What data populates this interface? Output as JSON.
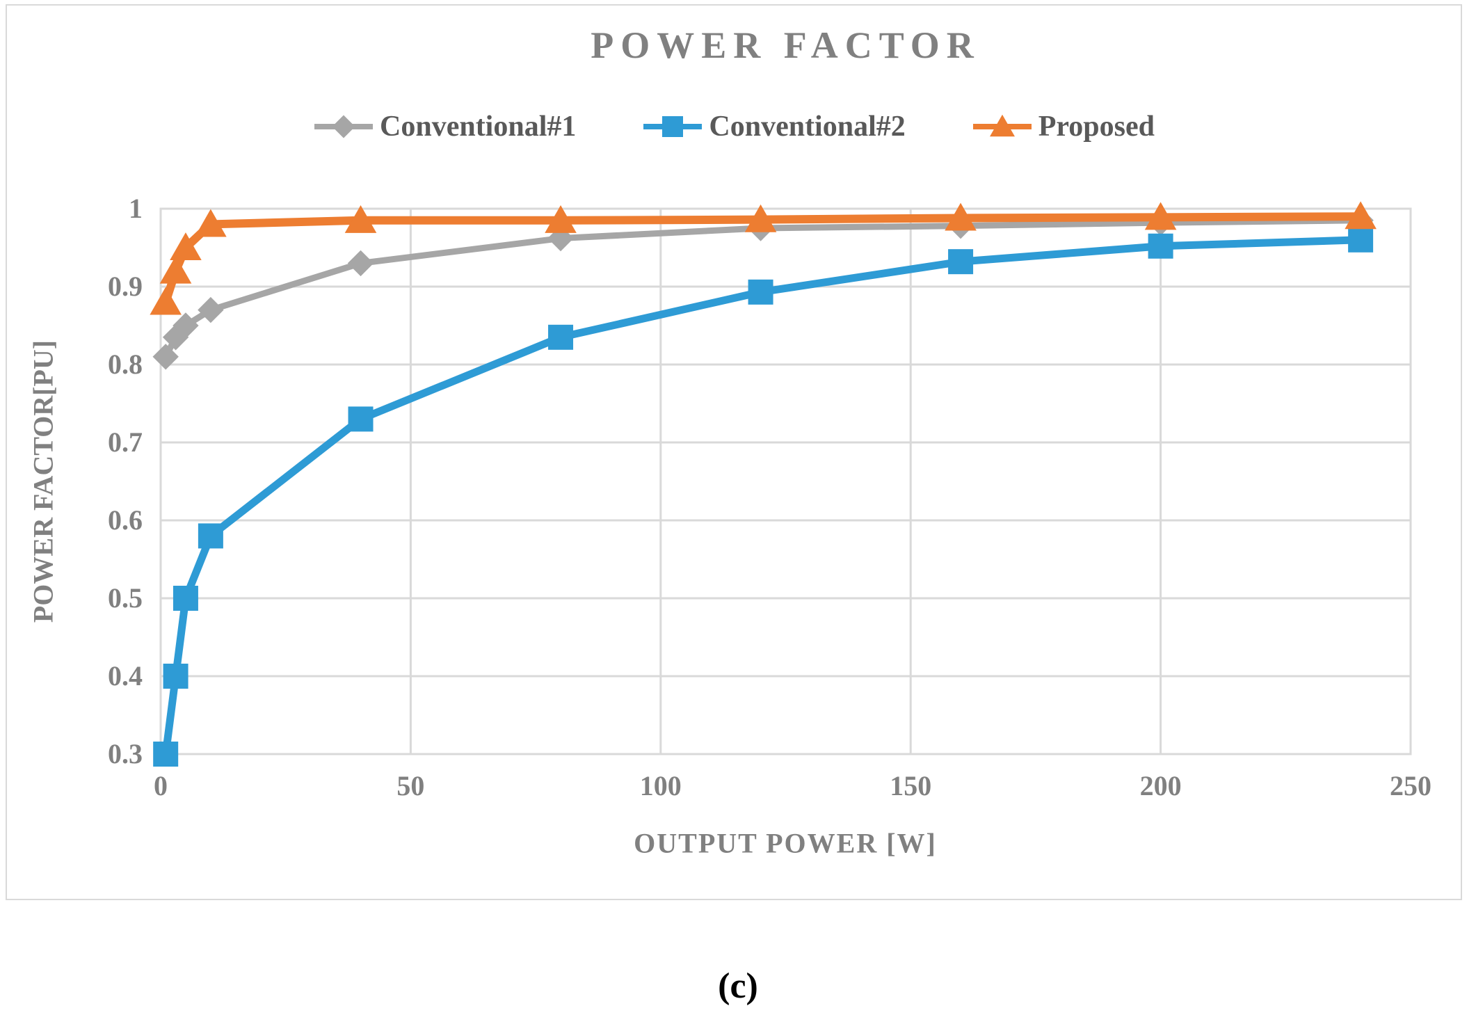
{
  "caption": "(c)",
  "colors": {
    "title_text": "#808080",
    "axis_text": "#808080",
    "legend_text": "#595959",
    "grid": "#D9D9D9",
    "caption_text": "#000000"
  },
  "chart_data": {
    "type": "line",
    "title": "POWER FACTOR",
    "xlabel": "OUTPUT POWER [W]",
    "ylabel": "POWER FACTOR[PU]",
    "xlim": [
      0,
      250
    ],
    "ylim": [
      0.3,
      1.0
    ],
    "x_ticks": [
      0,
      50,
      100,
      150,
      200,
      250
    ],
    "y_ticks": [
      1,
      0.9,
      0.8,
      0.7,
      0.6,
      0.5,
      0.4,
      0.3
    ],
    "grid": true,
    "legend_position": "top",
    "x": [
      1,
      3,
      5,
      10,
      40,
      80,
      120,
      160,
      200,
      240
    ],
    "series": [
      {
        "name": "Conventional#1",
        "marker": "diamond",
        "color": "#A6A6A6",
        "values": [
          0.81,
          0.835,
          0.85,
          0.87,
          0.93,
          0.962,
          0.975,
          0.978,
          0.982,
          0.985
        ]
      },
      {
        "name": "Conventional#2",
        "marker": "square",
        "color": "#2E9BD5",
        "values": [
          0.3,
          0.4,
          0.5,
          0.58,
          0.73,
          0.835,
          0.893,
          0.932,
          0.952,
          0.96
        ]
      },
      {
        "name": "Proposed",
        "marker": "triangle",
        "color": "#ED7D31",
        "values": [
          0.88,
          0.92,
          0.95,
          0.98,
          0.985,
          0.985,
          0.986,
          0.988,
          0.989,
          0.99
        ]
      }
    ]
  }
}
